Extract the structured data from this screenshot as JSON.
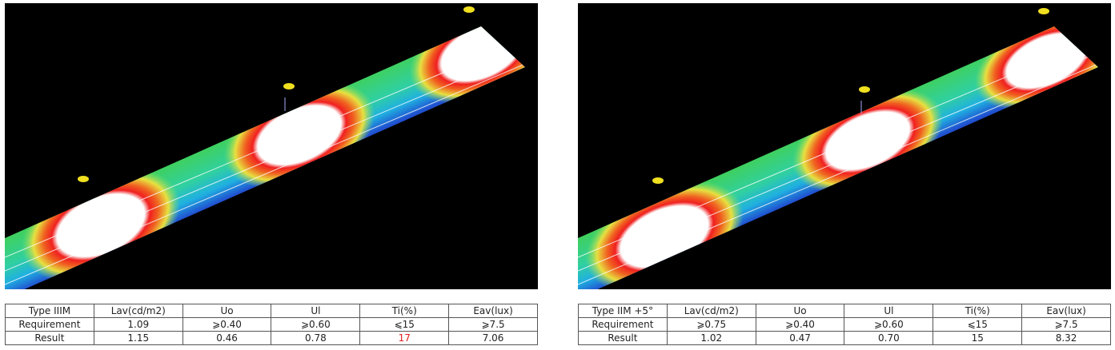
{
  "tables": [
    {
      "header": [
        "Type IIIM",
        "Lav(cd/m2)",
        "Uo",
        "Ul",
        "Ti(%)",
        "Eav(lux)"
      ],
      "rows": [
        [
          "Requirement",
          "1.09",
          "⩾0.40",
          "⩾0.60",
          "⩽15",
          "⩾7.5"
        ],
        [
          "Result",
          "1.15",
          "0.46",
          "0.78",
          "17",
          "7.06"
        ]
      ]
    },
    {
      "header": [
        "Type IIM +5°",
        "Lav(cd/m2)",
        "Uo",
        "Ul",
        "Ti(%)",
        "Eav(lux)"
      ],
      "rows": [
        [
          "Requirement",
          "⩾0.75",
          "⩾0.40",
          "⩾0.60",
          "⩽15",
          "⩾7.5"
        ],
        [
          "Result",
          "1.02",
          "0.47",
          "0.70",
          "15",
          "8.32"
        ]
      ]
    }
  ]
}
